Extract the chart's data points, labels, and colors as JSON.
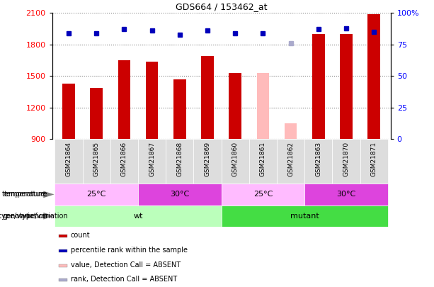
{
  "title": "GDS664 / 153462_at",
  "samples": [
    "GSM21864",
    "GSM21865",
    "GSM21866",
    "GSM21867",
    "GSM21868",
    "GSM21869",
    "GSM21860",
    "GSM21861",
    "GSM21862",
    "GSM21863",
    "GSM21870",
    "GSM21871"
  ],
  "counts": [
    1430,
    1390,
    1650,
    1640,
    1470,
    1690,
    1530,
    1530,
    1050,
    1900,
    1900,
    2090
  ],
  "absent_flags": [
    false,
    false,
    false,
    false,
    false,
    false,
    false,
    true,
    true,
    false,
    false,
    false
  ],
  "percentile_ranks": [
    84,
    84,
    87,
    86,
    83,
    86,
    84,
    84,
    76,
    87,
    88,
    85
  ],
  "absent_rank_flags": [
    false,
    false,
    false,
    false,
    false,
    false,
    false,
    false,
    true,
    false,
    false,
    false
  ],
  "bar_color_normal": "#cc0000",
  "bar_color_absent": "#ffbbbb",
  "dot_color_normal": "#0000bb",
  "dot_color_absent": "#aaaacc",
  "ymin": 900,
  "ymax": 2100,
  "yticks": [
    900,
    1200,
    1500,
    1800,
    2100
  ],
  "right_yticks": [
    0,
    25,
    50,
    75,
    100
  ],
  "right_ytick_labels": [
    "0",
    "25",
    "50",
    "75",
    "100%"
  ],
  "genotype_groups": [
    {
      "label": "wt",
      "start": 0,
      "end": 6,
      "color": "#bbffbb"
    },
    {
      "label": "mutant",
      "start": 6,
      "end": 12,
      "color": "#44dd44"
    }
  ],
  "temperature_groups": [
    {
      "label": "25°C",
      "start": 0,
      "end": 3,
      "color": "#ffbbff"
    },
    {
      "label": "30°C",
      "start": 3,
      "end": 6,
      "color": "#dd44dd"
    },
    {
      "label": "25°C",
      "start": 6,
      "end": 9,
      "color": "#ffbbff"
    },
    {
      "label": "30°C",
      "start": 9,
      "end": 12,
      "color": "#dd44dd"
    }
  ],
  "legend_items": [
    {
      "label": "count",
      "color": "#cc0000"
    },
    {
      "label": "percentile rank within the sample",
      "color": "#0000bb"
    },
    {
      "label": "value, Detection Call = ABSENT",
      "color": "#ffbbbb"
    },
    {
      "label": "rank, Detection Call = ABSENT",
      "color": "#aaaacc"
    }
  ],
  "bar_width": 0.45,
  "dot_size": 5
}
